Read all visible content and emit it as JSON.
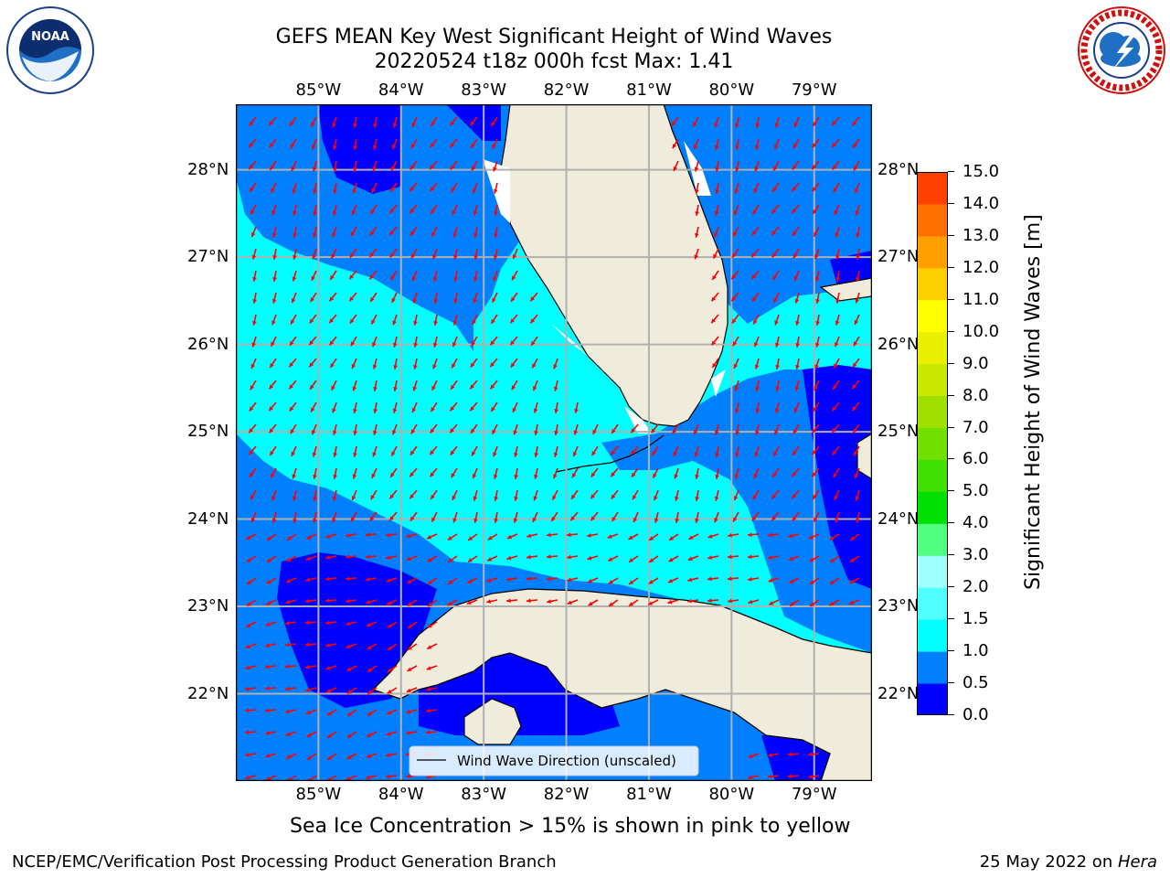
{
  "title": {
    "line1": "GEFS MEAN Key West Significant Height of Wind Waves",
    "line2": "20220524 t18z 000h fcst   Max: 1.41"
  },
  "logos": {
    "left": "noaa-logo",
    "right": "nws-logo"
  },
  "map": {
    "lon_ticks": [
      "85°W",
      "84°W",
      "83°W",
      "82°W",
      "81°W",
      "80°W",
      "79°W"
    ],
    "lat_ticks_left": [
      "28°N",
      "27°N",
      "26°N",
      "25°N",
      "24°N",
      "23°N",
      "22°N"
    ],
    "lat_ticks_right": [
      "28°N",
      "27°N",
      "26°N",
      "25°N",
      "24°N",
      "23°N",
      "22°N"
    ],
    "extent": {
      "lon_min": -86.0,
      "lon_max": -78.3,
      "lat_min": 21.0,
      "lat_max": 28.75
    },
    "legend": "Wind Wave Direction (unscaled)",
    "arrow_color": "#ff0000",
    "land_color": "#efecdc",
    "max_value": 1.41
  },
  "colorbar": {
    "label": "Significant Height of Wind Waves [m]",
    "ticks": [
      "0.0",
      "0.5",
      "1.0",
      "1.5",
      "2.0",
      "3.0",
      "4.0",
      "5.0",
      "6.0",
      "7.0",
      "8.0",
      "9.0",
      "10.0",
      "11.0",
      "12.0",
      "13.0",
      "14.0",
      "15.0"
    ],
    "colors": [
      "#0000ff",
      "#0080ff",
      "#00ffff",
      "#50ffff",
      "#a0ffff",
      "#50ff80",
      "#00e000",
      "#40e000",
      "#70e000",
      "#a0e000",
      "#c8e800",
      "#e8f000",
      "#ffff00",
      "#ffd000",
      "#ffa000",
      "#ff7000",
      "#ff4000",
      "#ff0000"
    ]
  },
  "caption": "Sea Ice Concentration > 15% is shown in pink to yellow",
  "footer": {
    "left": "NCEP/EMC/Verification Post Processing Product Generation Branch",
    "right_date": "25 May 2022 on ",
    "right_host": "Hera"
  }
}
